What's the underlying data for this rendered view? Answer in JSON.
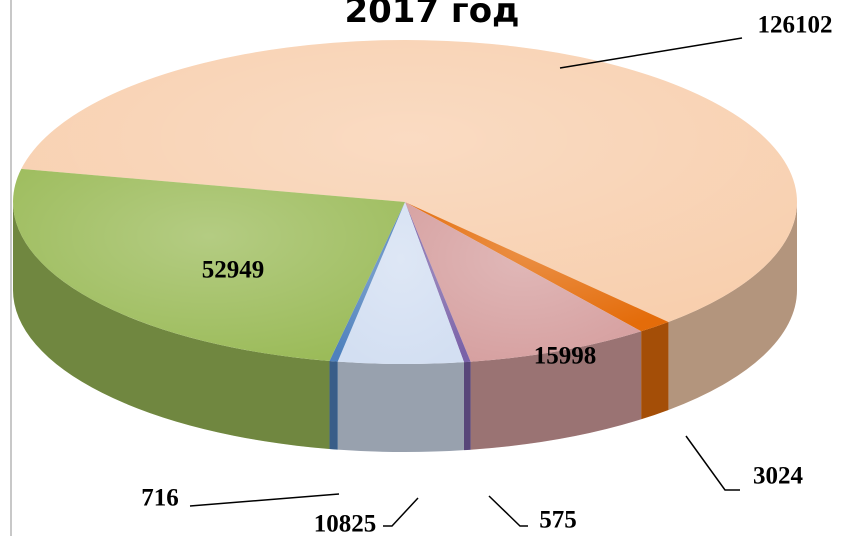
{
  "chart_data": {
    "type": "pie",
    "title": "2017 год",
    "categories": [
      null,
      null,
      null,
      null,
      null,
      null,
      null
    ],
    "values": [
      126102,
      3024,
      15998,
      575,
      10825,
      716,
      52949
    ],
    "colors": [
      "#f8cfae",
      "#e46c0a",
      "#d6a0a0",
      "#7a62a8",
      "#d3dff2",
      "#4f81bd",
      "#9bbb59"
    ]
  }
}
